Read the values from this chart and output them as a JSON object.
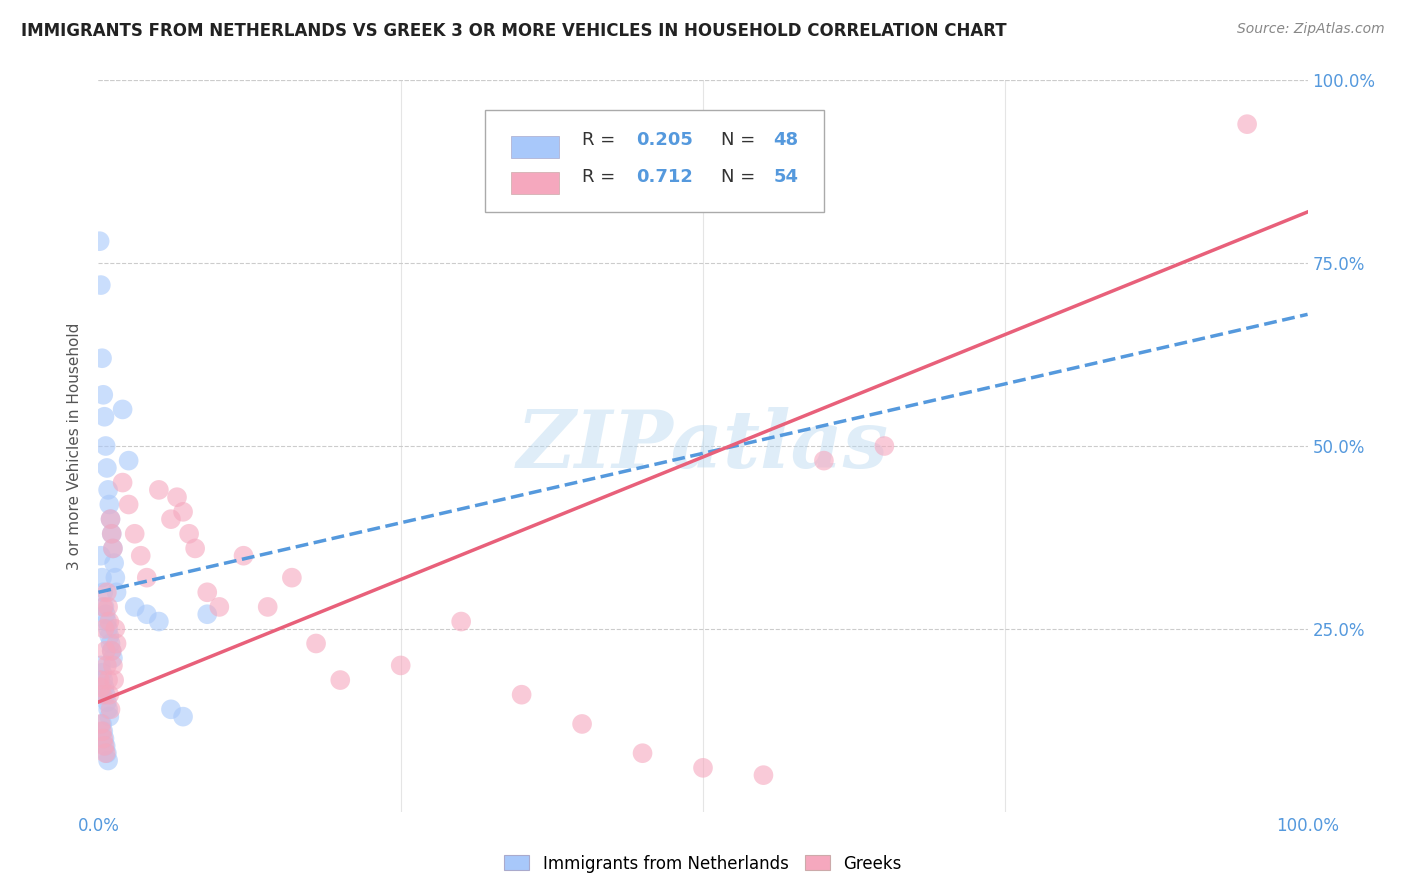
{
  "title": "IMMIGRANTS FROM NETHERLANDS VS GREEK 3 OR MORE VEHICLES IN HOUSEHOLD CORRELATION CHART",
  "source": "Source: ZipAtlas.com",
  "ylabel": "3 or more Vehicles in Household",
  "xlim": [
    0.0,
    1.0
  ],
  "ylim": [
    0.0,
    1.0
  ],
  "netherlands_R": 0.205,
  "netherlands_N": 48,
  "greek_R": 0.712,
  "greek_N": 54,
  "netherlands_color": "#a8c8fa",
  "greek_color": "#f5a8be",
  "netherlands_line_color": "#5599dd",
  "greek_line_color": "#e8607a",
  "watermark": "ZIPatlas",
  "background_color": "#ffffff",
  "grid_color": "#dddddd",
  "netherlands_x": [
    0.001,
    0.002,
    0.003,
    0.004,
    0.005,
    0.006,
    0.007,
    0.008,
    0.009,
    0.01,
    0.011,
    0.012,
    0.013,
    0.014,
    0.015,
    0.002,
    0.003,
    0.004,
    0.005,
    0.006,
    0.007,
    0.008,
    0.009,
    0.01,
    0.011,
    0.012,
    0.002,
    0.003,
    0.004,
    0.005,
    0.006,
    0.007,
    0.008,
    0.009,
    0.02,
    0.025,
    0.03,
    0.04,
    0.05,
    0.06,
    0.07,
    0.09,
    0.003,
    0.004,
    0.005,
    0.006,
    0.007,
    0.008
  ],
  "netherlands_y": [
    0.78,
    0.72,
    0.62,
    0.57,
    0.54,
    0.5,
    0.47,
    0.44,
    0.42,
    0.4,
    0.38,
    0.36,
    0.34,
    0.32,
    0.3,
    0.35,
    0.32,
    0.3,
    0.28,
    0.27,
    0.26,
    0.25,
    0.24,
    0.23,
    0.22,
    0.21,
    0.2,
    0.19,
    0.18,
    0.17,
    0.16,
    0.15,
    0.14,
    0.13,
    0.55,
    0.48,
    0.28,
    0.27,
    0.26,
    0.14,
    0.13,
    0.27,
    0.12,
    0.11,
    0.1,
    0.09,
    0.08,
    0.07
  ],
  "greek_x": [
    0.001,
    0.002,
    0.003,
    0.004,
    0.005,
    0.006,
    0.007,
    0.008,
    0.009,
    0.01,
    0.011,
    0.012,
    0.013,
    0.014,
    0.015,
    0.002,
    0.003,
    0.004,
    0.005,
    0.006,
    0.007,
    0.008,
    0.009,
    0.01,
    0.011,
    0.012,
    0.02,
    0.025,
    0.03,
    0.035,
    0.04,
    0.05,
    0.06,
    0.065,
    0.07,
    0.075,
    0.08,
    0.09,
    0.1,
    0.12,
    0.14,
    0.16,
    0.18,
    0.2,
    0.25,
    0.3,
    0.35,
    0.4,
    0.45,
    0.5,
    0.55,
    0.6,
    0.65,
    0.95
  ],
  "greek_y": [
    0.18,
    0.17,
    0.16,
    0.28,
    0.25,
    0.22,
    0.2,
    0.18,
    0.16,
    0.14,
    0.22,
    0.2,
    0.18,
    0.25,
    0.23,
    0.12,
    0.11,
    0.1,
    0.09,
    0.08,
    0.3,
    0.28,
    0.26,
    0.4,
    0.38,
    0.36,
    0.45,
    0.42,
    0.38,
    0.35,
    0.32,
    0.44,
    0.4,
    0.43,
    0.41,
    0.38,
    0.36,
    0.3,
    0.28,
    0.35,
    0.28,
    0.32,
    0.23,
    0.18,
    0.2,
    0.26,
    0.16,
    0.12,
    0.08,
    0.06,
    0.05,
    0.48,
    0.5,
    0.94
  ],
  "neth_trend_x0": 0.0,
  "neth_trend_y0": 0.3,
  "neth_trend_x1": 1.0,
  "neth_trend_y1": 0.68,
  "greek_trend_x0": 0.0,
  "greek_trend_y0": 0.15,
  "greek_trend_x1": 1.0,
  "greek_trend_y1": 0.82
}
